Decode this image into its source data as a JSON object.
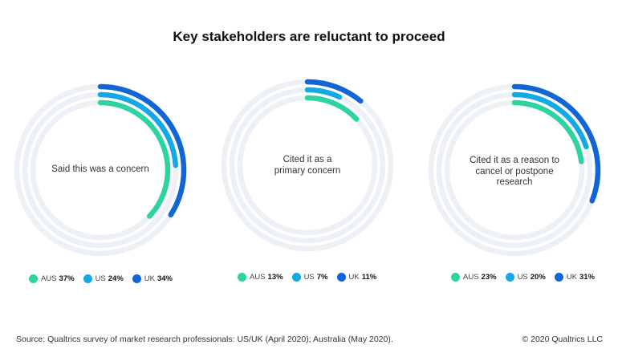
{
  "title": "Key stakeholders are reluctant to proceed",
  "colors": {
    "AUS": "#2ed3a2",
    "US": "#14a9e6",
    "UK": "#1165d4",
    "track": "#edf1f5"
  },
  "chart_data": [
    {
      "type": "radial-bar",
      "center_label": "Said this was a concern",
      "series": [
        {
          "name": "AUS",
          "value": 37,
          "label": "37%"
        },
        {
          "name": "US",
          "value": 24,
          "label": "24%"
        },
        {
          "name": "UK",
          "value": 34,
          "label": "34%"
        }
      ]
    },
    {
      "type": "radial-bar",
      "center_label": "Cited it as a primary concern",
      "series": [
        {
          "name": "AUS",
          "value": 13,
          "label": "13%"
        },
        {
          "name": "US",
          "value": 7,
          "label": "7%"
        },
        {
          "name": "UK",
          "value": 11,
          "label": "11%"
        }
      ]
    },
    {
      "type": "radial-bar",
      "center_label": "Cited it as a  reason to cancel or postpone research",
      "series": [
        {
          "name": "AUS",
          "value": 23,
          "label": "23%"
        },
        {
          "name": "US",
          "value": 20,
          "label": "20%"
        },
        {
          "name": "UK",
          "value": 31,
          "label": "31%"
        }
      ]
    }
  ],
  "footer": {
    "source": "Source: Qualtrics survey of market research professionals: US/UK (April 2020); Australia (May 2020).",
    "copyright": "© 2020 Qualtrics LLC"
  }
}
